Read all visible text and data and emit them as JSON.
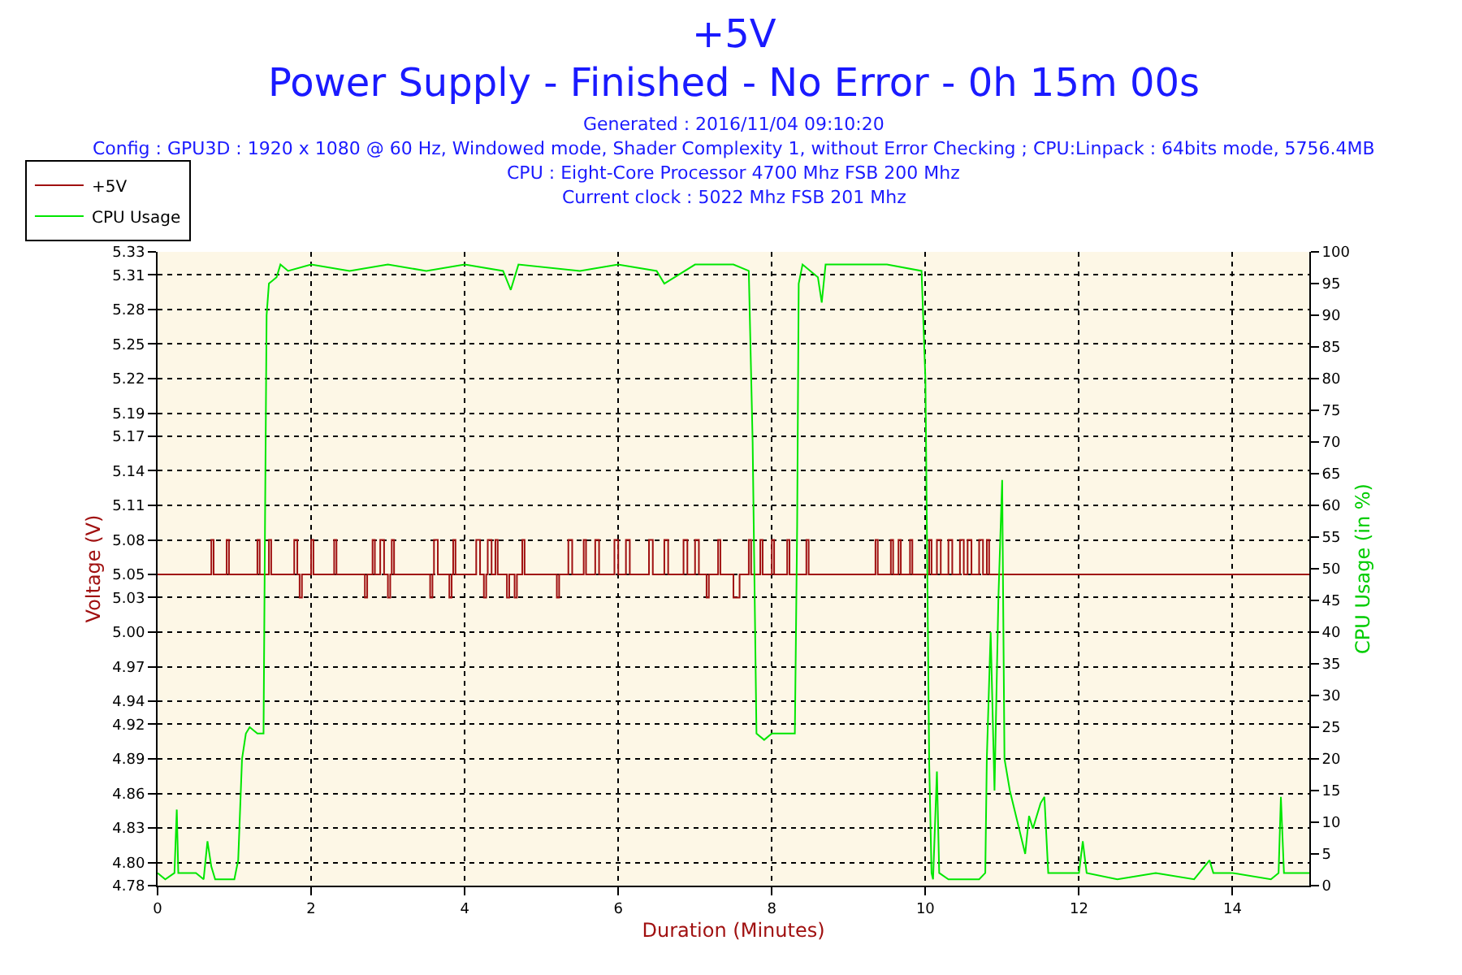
{
  "chart_data": {
    "type": "line",
    "title": "+5V",
    "subtitle": "Power Supply - Finished - No Error - 0h 15m 00s",
    "annotations": [
      "Generated : 2016/11/04 09:10:20",
      "Config : GPU3D : 1920 x 1080 @ 60 Hz, Windowed mode, Shader Complexity 1, without Error Checking ; CPU:Linpack : 64bits mode, 5756.4MB",
      "CPU : Eight-Core Processor 4700 Mhz FSB 200 Mhz",
      "Current clock : 5022 Mhz FSB 201 Mhz"
    ],
    "xlabel": "Duration (Minutes)",
    "ylabel": "Voltage (V)",
    "y2label": "CPU Usage (in %)",
    "xlim": [
      0,
      15
    ],
    "xticks": [
      0,
      2,
      4,
      6,
      8,
      10,
      12,
      14
    ],
    "ylim": [
      4.78,
      5.33
    ],
    "yticks": [
      {
        "value": 4.78,
        "label": "4.78"
      },
      {
        "value": 4.8,
        "label": "4.80"
      },
      {
        "value": 4.83,
        "label": "4.83"
      },
      {
        "value": 4.86,
        "label": "4.86"
      },
      {
        "value": 4.89,
        "label": "4.89"
      },
      {
        "value": 4.92,
        "label": "4.92"
      },
      {
        "value": 4.94,
        "label": "4.94"
      },
      {
        "value": 4.97,
        "label": "4.97"
      },
      {
        "value": 5.0,
        "label": "5.00"
      },
      {
        "value": 5.03,
        "label": "5.03"
      },
      {
        "value": 5.05,
        "label": "5.05"
      },
      {
        "value": 5.08,
        "label": "5.08"
      },
      {
        "value": 5.11,
        "label": "5.11"
      },
      {
        "value": 5.14,
        "label": "5.14"
      },
      {
        "value": 5.17,
        "label": "5.17"
      },
      {
        "value": 5.19,
        "label": "5.19"
      },
      {
        "value": 5.22,
        "label": "5.22"
      },
      {
        "value": 5.25,
        "label": "5.25"
      },
      {
        "value": 5.28,
        "label": "5.28"
      },
      {
        "value": 5.31,
        "label": "5.31"
      },
      {
        "value": 5.33,
        "label": "5.33"
      }
    ],
    "y2lim": [
      0,
      100
    ],
    "y2ticks": [
      0,
      5,
      10,
      15,
      20,
      25,
      30,
      35,
      40,
      45,
      50,
      55,
      60,
      65,
      70,
      75,
      80,
      85,
      90,
      95,
      100
    ],
    "grid": true,
    "legend": "top left",
    "series": [
      {
        "name": "+5V",
        "type": "step",
        "color": "#a01010",
        "x": [
          0,
          0.7,
          0.73,
          0.9,
          0.93,
          1.3,
          1.33,
          1.45,
          1.48,
          1.78,
          1.82,
          1.85,
          1.88,
          2.0,
          2.03,
          2.3,
          2.33,
          2.7,
          2.73,
          2.8,
          2.83,
          2.9,
          2.95,
          3.0,
          3.03,
          3.05,
          3.08,
          3.55,
          3.58,
          3.6,
          3.65,
          3.8,
          3.83,
          3.85,
          3.88,
          4.15,
          4.2,
          4.25,
          4.28,
          4.3,
          4.35,
          4.4,
          4.43,
          4.55,
          4.58,
          4.65,
          4.68,
          4.75,
          4.78,
          5.2,
          5.23,
          5.35,
          5.4,
          5.55,
          5.58,
          5.7,
          5.75,
          5.95,
          6.0,
          6.1,
          6.15,
          6.4,
          6.45,
          6.6,
          6.65,
          6.85,
          6.9,
          7.0,
          7.05,
          7.15,
          7.18,
          7.3,
          7.33,
          7.5,
          7.58,
          7.7,
          7.73,
          7.85,
          7.88,
          8.0,
          8.03,
          8.2,
          8.23,
          8.45,
          8.48,
          9.35,
          9.38,
          9.55,
          9.58,
          9.65,
          9.68,
          9.8,
          9.83,
          10.05,
          10.08,
          10.15,
          10.2,
          10.3,
          10.35,
          10.45,
          10.5,
          10.55,
          10.6,
          10.7,
          10.75,
          10.8,
          10.83,
          15
        ],
        "values": [
          5.05,
          5.08,
          5.05,
          5.08,
          5.05,
          5.08,
          5.05,
          5.08,
          5.05,
          5.08,
          5.05,
          5.03,
          5.05,
          5.08,
          5.05,
          5.08,
          5.05,
          5.03,
          5.05,
          5.08,
          5.05,
          5.08,
          5.05,
          5.03,
          5.05,
          5.08,
          5.05,
          5.03,
          5.05,
          5.08,
          5.05,
          5.03,
          5.05,
          5.08,
          5.05,
          5.08,
          5.05,
          5.03,
          5.05,
          5.08,
          5.05,
          5.08,
          5.05,
          5.03,
          5.05,
          5.03,
          5.05,
          5.08,
          5.05,
          5.03,
          5.05,
          5.08,
          5.05,
          5.08,
          5.05,
          5.08,
          5.05,
          5.08,
          5.05,
          5.08,
          5.05,
          5.08,
          5.05,
          5.08,
          5.05,
          5.08,
          5.05,
          5.08,
          5.05,
          5.03,
          5.05,
          5.08,
          5.05,
          5.03,
          5.05,
          5.08,
          5.05,
          5.08,
          5.05,
          5.08,
          5.05,
          5.08,
          5.05,
          5.08,
          5.05,
          5.08,
          5.05,
          5.08,
          5.05,
          5.08,
          5.05,
          5.08,
          5.05,
          5.08,
          5.05,
          5.08,
          5.05,
          5.08,
          5.05,
          5.08,
          5.05,
          5.08,
          5.05,
          5.08,
          5.05,
          5.08,
          5.05,
          5.05
        ]
      },
      {
        "name": "CPU Usage",
        "axis": "y2",
        "color": "#00e600",
        "x": [
          0,
          0.1,
          0.22,
          0.25,
          0.27,
          0.5,
          0.6,
          0.65,
          0.7,
          0.75,
          0.9,
          1.0,
          1.05,
          1.1,
          1.15,
          1.2,
          1.3,
          1.38,
          1.4,
          1.42,
          1.45,
          1.55,
          1.6,
          1.7,
          2.0,
          2.5,
          3.0,
          3.5,
          4.0,
          4.5,
          4.6,
          4.7,
          5.5,
          6.0,
          6.5,
          6.6,
          7.0,
          7.5,
          7.7,
          7.75,
          7.8,
          7.9,
          8.0,
          8.2,
          8.3,
          8.33,
          8.35,
          8.4,
          8.6,
          8.65,
          8.7,
          9.0,
          9.5,
          9.95,
          10.0,
          10.05,
          10.08,
          10.1,
          10.15,
          10.18,
          10.3,
          10.5,
          10.7,
          10.78,
          10.8,
          10.85,
          10.9,
          10.95,
          11.0,
          11.03,
          11.1,
          11.2,
          11.3,
          11.35,
          11.4,
          11.5,
          11.55,
          11.6,
          11.8,
          12.0,
          12.05,
          12.1,
          12.5,
          13.0,
          13.5,
          13.7,
          13.75,
          14.0,
          14.5,
          14.6,
          14.63,
          14.67,
          14.8,
          15
        ],
        "values": [
          2,
          1,
          2,
          12,
          2,
          2,
          1,
          7,
          3,
          1,
          1,
          1,
          4,
          20,
          24,
          25,
          24,
          24,
          58,
          90,
          95,
          96,
          98,
          97,
          98,
          97,
          98,
          97,
          98,
          97,
          94,
          98,
          97,
          98,
          97,
          95,
          98,
          98,
          97,
          70,
          24,
          23,
          24,
          24,
          24,
          57,
          95,
          98,
          96,
          92,
          98,
          98,
          98,
          97,
          80,
          19,
          2,
          1,
          18,
          2,
          1,
          1,
          1,
          2,
          20,
          40,
          15,
          45,
          64,
          20,
          15,
          10,
          5,
          11,
          9,
          13,
          14,
          2,
          2,
          2,
          7,
          2,
          1,
          2,
          1,
          4,
          2,
          2,
          1,
          2,
          14,
          2,
          2,
          2
        ]
      }
    ]
  }
}
